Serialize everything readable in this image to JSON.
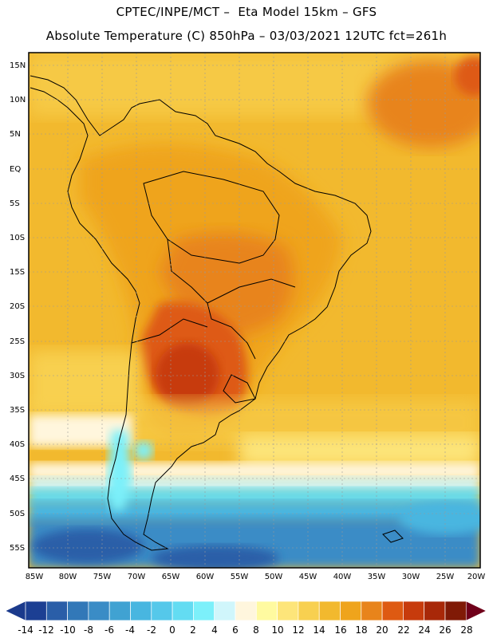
{
  "header": {
    "line1": "CPTEC/INPE/MCT –  Eta Model 15km – GFS",
    "line2": "Absolute Temperature (C) 850hPa – 03/03/2021 12UTC fct=261h"
  },
  "map": {
    "region": "South America",
    "lat_labels": [
      "15N",
      "10N",
      "5N",
      "EQ",
      "5S",
      "10S",
      "15S",
      "20S",
      "25S",
      "30S",
      "35S",
      "40S",
      "45S",
      "50S",
      "55S"
    ],
    "lon_labels": [
      "85W",
      "80W",
      "75W",
      "70W",
      "65W",
      "60W",
      "55W",
      "50W",
      "45W",
      "40W",
      "35W",
      "30W",
      "25W",
      "20W"
    ]
  },
  "colorbar": {
    "labels": [
      "-14",
      "-12",
      "-10",
      "-8",
      "-6",
      "-4",
      "-2",
      "0",
      "2",
      "4",
      "6",
      "8",
      "10",
      "12",
      "14",
      "16",
      "18",
      "20",
      "22",
      "24",
      "26",
      "28"
    ],
    "colors": [
      "#1c3f93",
      "#2a5ea8",
      "#3278b8",
      "#3a8cc6",
      "#40a2d2",
      "#48b6e0",
      "#55c8ea",
      "#63dcf2",
      "#7cf0fa",
      "#d0f6fb",
      "#fff6dd",
      "#fffaa0",
      "#fde57a",
      "#f8d050",
      "#f2b92e",
      "#efa41c",
      "#e8841b",
      "#de5a12",
      "#c73b0c",
      "#a82808",
      "#801a06"
    ],
    "low_color": "#1b3a8c",
    "high_color": "#70001a"
  }
}
